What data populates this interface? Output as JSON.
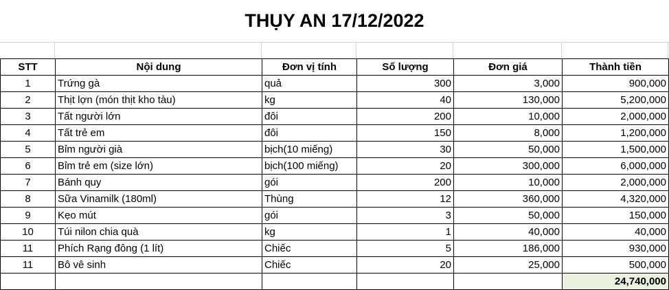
{
  "title": "THỤY AN 17/12/2022",
  "headers": [
    "STT",
    "Nội dung",
    "Đơn vị tính",
    "Số lượng",
    "Đơn giá",
    "Thành tiền"
  ],
  "rows": [
    [
      "1",
      "Trứng gà",
      "quả",
      "300",
      "3,000",
      "900,000"
    ],
    [
      "2",
      "Thịt lợn (món thịt kho tàu)",
      "kg",
      "40",
      "130,000",
      "5,200,000"
    ],
    [
      "3",
      "Tất người lớn",
      "đôi",
      "200",
      "10,000",
      "2,000,000"
    ],
    [
      "4",
      "Tất trẻ em",
      "đôi",
      "150",
      "8,000",
      "1,200,000"
    ],
    [
      "5",
      "Bỉm người già",
      "bịch(10 miếng)",
      "30",
      "50,000",
      "1,500,000"
    ],
    [
      "6",
      "Bỉm trẻ em (size lớn)",
      "bịch(100 miếng)",
      "20",
      "300,000",
      "6,000,000"
    ],
    [
      "7",
      "Bánh quy",
      "gói",
      "200",
      "10,000",
      "2,000,000"
    ],
    [
      "8",
      "Sữa Vinamilk (180ml)",
      "Thùng",
      "12",
      "360,000",
      "4,320,000"
    ],
    [
      "9",
      "Kẹo mút",
      "gói",
      "3",
      "50,000",
      "150,000"
    ],
    [
      "10",
      "Túi nilon chia quà",
      "kg",
      "1",
      "40,000",
      "40,000"
    ],
    [
      "11",
      "Phích Rạng đông (1 lít)",
      "Chiếc",
      "5",
      "186,000",
      "930,000"
    ],
    [
      "11",
      "Bô vê sinh",
      "Chiếc",
      "20",
      "25,000",
      "500,000"
    ]
  ],
  "total": "24,740,000",
  "colors": {
    "total_fill": "#ebf1de"
  }
}
